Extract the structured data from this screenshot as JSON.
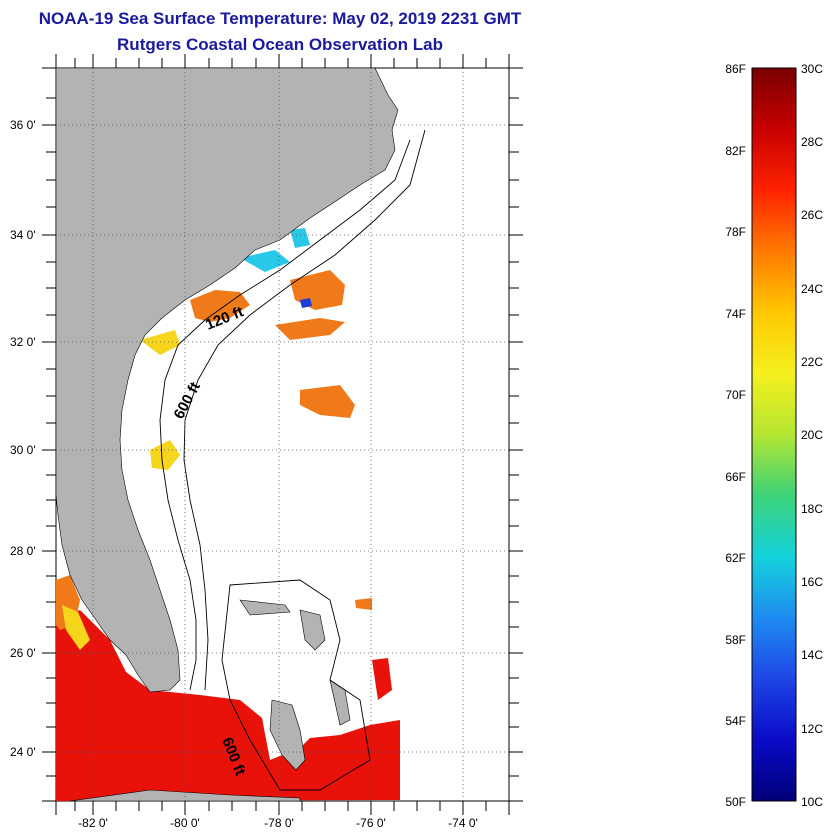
{
  "title": {
    "line1": "NOAA-19 Sea Surface Temperature:  May 02, 2019 2231 GMT",
    "line2": "Rutgers Coastal Ocean Observation Lab"
  },
  "map": {
    "lat_labels": [
      "36 0'",
      "34 0'",
      "32 0'",
      "30 0'",
      "28 0'",
      "26 0'",
      "24 0'"
    ],
    "lon_labels": [
      "-82 0'",
      "-80 0'",
      "-78 0'",
      "-76 0'",
      "-74 0'"
    ],
    "contour_labels": [
      "120 ft",
      "600 ft",
      "600 ft"
    ],
    "colors": {
      "land": "#b3b3b3",
      "ocean_nodata": "#ffffff",
      "warm": "#e8120a",
      "orange": "#f07a1a",
      "yellow": "#f5d61c",
      "cyan": "#28c8e8",
      "blue": "#1c3cd8"
    }
  },
  "colorbar": {
    "fahrenheit_labels": [
      "86F",
      "82F",
      "78F",
      "74F",
      "70F",
      "66F",
      "62F",
      "58F",
      "54F",
      "50F"
    ],
    "celsius_labels": [
      "30C",
      "28C",
      "26C",
      "24C",
      "22C",
      "20C",
      "18C",
      "16C",
      "14C",
      "12C",
      "10C"
    ],
    "gradient": [
      "#7a0000",
      "#c80000",
      "#ff2200",
      "#ff7a00",
      "#ffc800",
      "#f5f01e",
      "#b4e632",
      "#3cd278",
      "#14d2dc",
      "#1e8cf0",
      "#1e46e6",
      "#0a0ac8",
      "#000078"
    ]
  }
}
